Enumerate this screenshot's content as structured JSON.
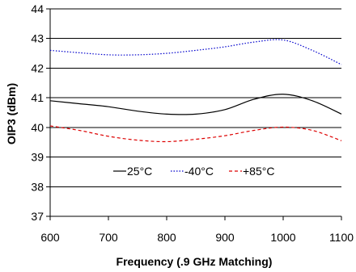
{
  "chart_data": {
    "type": "line",
    "title": "",
    "xlabel": "Frequency (.9 GHz Matching)",
    "ylabel": "OIP3 (dBm)",
    "xlim": [
      600,
      1100
    ],
    "ylim": [
      37,
      44
    ],
    "xticks": [
      600,
      700,
      800,
      900,
      1000,
      1100
    ],
    "yticks": [
      37,
      38,
      39,
      40,
      41,
      42,
      43,
      44
    ],
    "grid": "horizontal",
    "legend_position": "lower-center",
    "series": [
      {
        "name": "25°C",
        "color": "#000000",
        "dash": "solid",
        "x": [
          600,
          650,
          700,
          750,
          800,
          850,
          900,
          950,
          1000,
          1050,
          1100
        ],
        "y": [
          40.9,
          40.8,
          40.7,
          40.55,
          40.45,
          40.45,
          40.6,
          40.95,
          41.12,
          40.9,
          40.45
        ]
      },
      {
        "name": "-40°C",
        "color": "#0000cc",
        "dash": "dotted",
        "x": [
          600,
          650,
          700,
          750,
          800,
          850,
          900,
          950,
          1000,
          1050,
          1100
        ],
        "y": [
          42.6,
          42.52,
          42.45,
          42.45,
          42.5,
          42.6,
          42.72,
          42.88,
          42.95,
          42.6,
          42.12
        ]
      },
      {
        "name": "+85°C",
        "color": "#dd0000",
        "dash": "dashed",
        "x": [
          600,
          650,
          700,
          750,
          800,
          850,
          900,
          950,
          1000,
          1050,
          1100
        ],
        "y": [
          40.05,
          39.9,
          39.7,
          39.57,
          39.52,
          39.6,
          39.72,
          39.9,
          40.01,
          39.9,
          39.55
        ]
      }
    ]
  }
}
